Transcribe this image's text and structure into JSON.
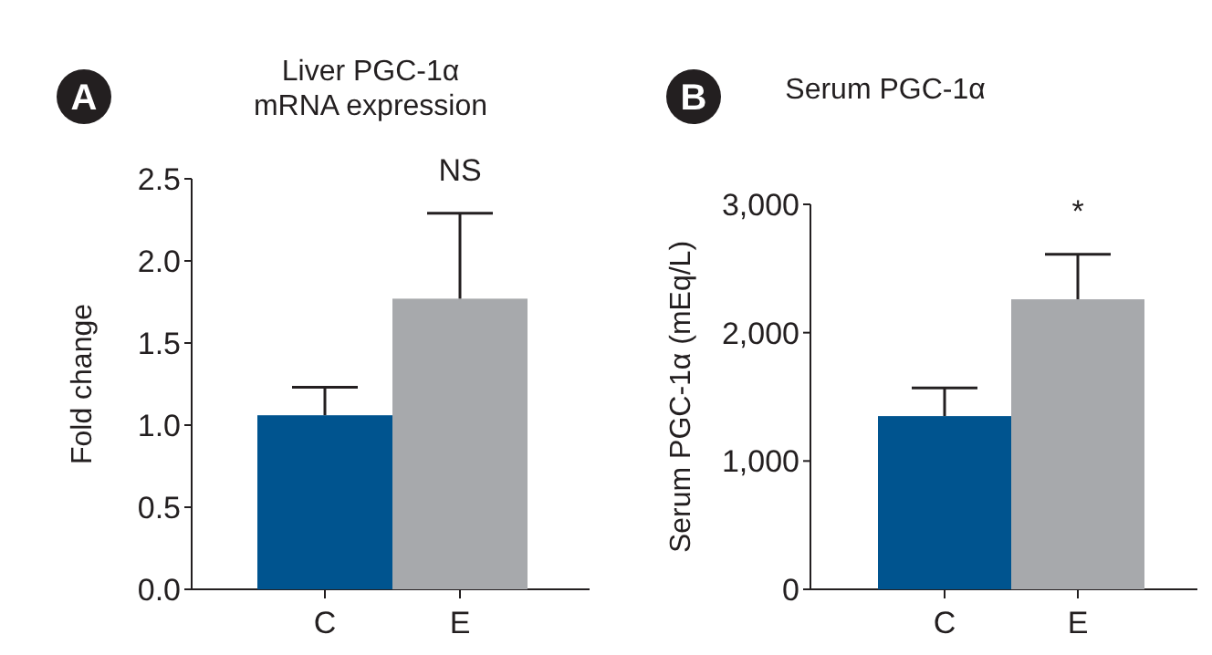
{
  "chart_data": [
    {
      "type": "bar",
      "title": "Liver PGC-1α\nmRNA expression",
      "ylabel": "Fold change",
      "categories": [
        "C",
        "E"
      ],
      "values": [
        1.06,
        1.77
      ],
      "colors": [
        "#00548f",
        "#a7a9ac"
      ],
      "errors": [
        [
          1.06,
          1.23
        ],
        [
          1.77,
          2.29
        ]
      ],
      "ylim": [
        0,
        2.5
      ],
      "yticks": [
        {
          "value": 0,
          "label": "0.0"
        },
        {
          "value": 0.5,
          "label": "0.5"
        },
        {
          "value": 1,
          "label": "1.0"
        },
        {
          "value": 1.5,
          "label": "1.5"
        },
        {
          "value": 2,
          "label": "2.0"
        },
        {
          "value": 2.5,
          "label": "2.5"
        }
      ],
      "grid": false,
      "annotations": [
        "A",
        "NS"
      ]
    },
    {
      "type": "bar",
      "title": "Serum PGC-1α",
      "ylabel": "Serum PGC-1α (mEq/L)",
      "categories": [
        "C",
        "E"
      ],
      "values": [
        1350,
        2260
      ],
      "colors": [
        "#00548f",
        "#a7a9ac"
      ],
      "errors": [
        [
          1350,
          1570
        ],
        [
          2260,
          2610
        ]
      ],
      "ylim": [
        0,
        3000
      ],
      "yticks": [
        0,
        {
          "value": 1000,
          "label": "1,000"
        },
        {
          "value": 2000,
          "label": "2,000"
        },
        {
          "value": 3000,
          "label": "3,000"
        }
      ],
      "grid": false,
      "annotations": [
        "B",
        "*"
      ]
    }
  ]
}
